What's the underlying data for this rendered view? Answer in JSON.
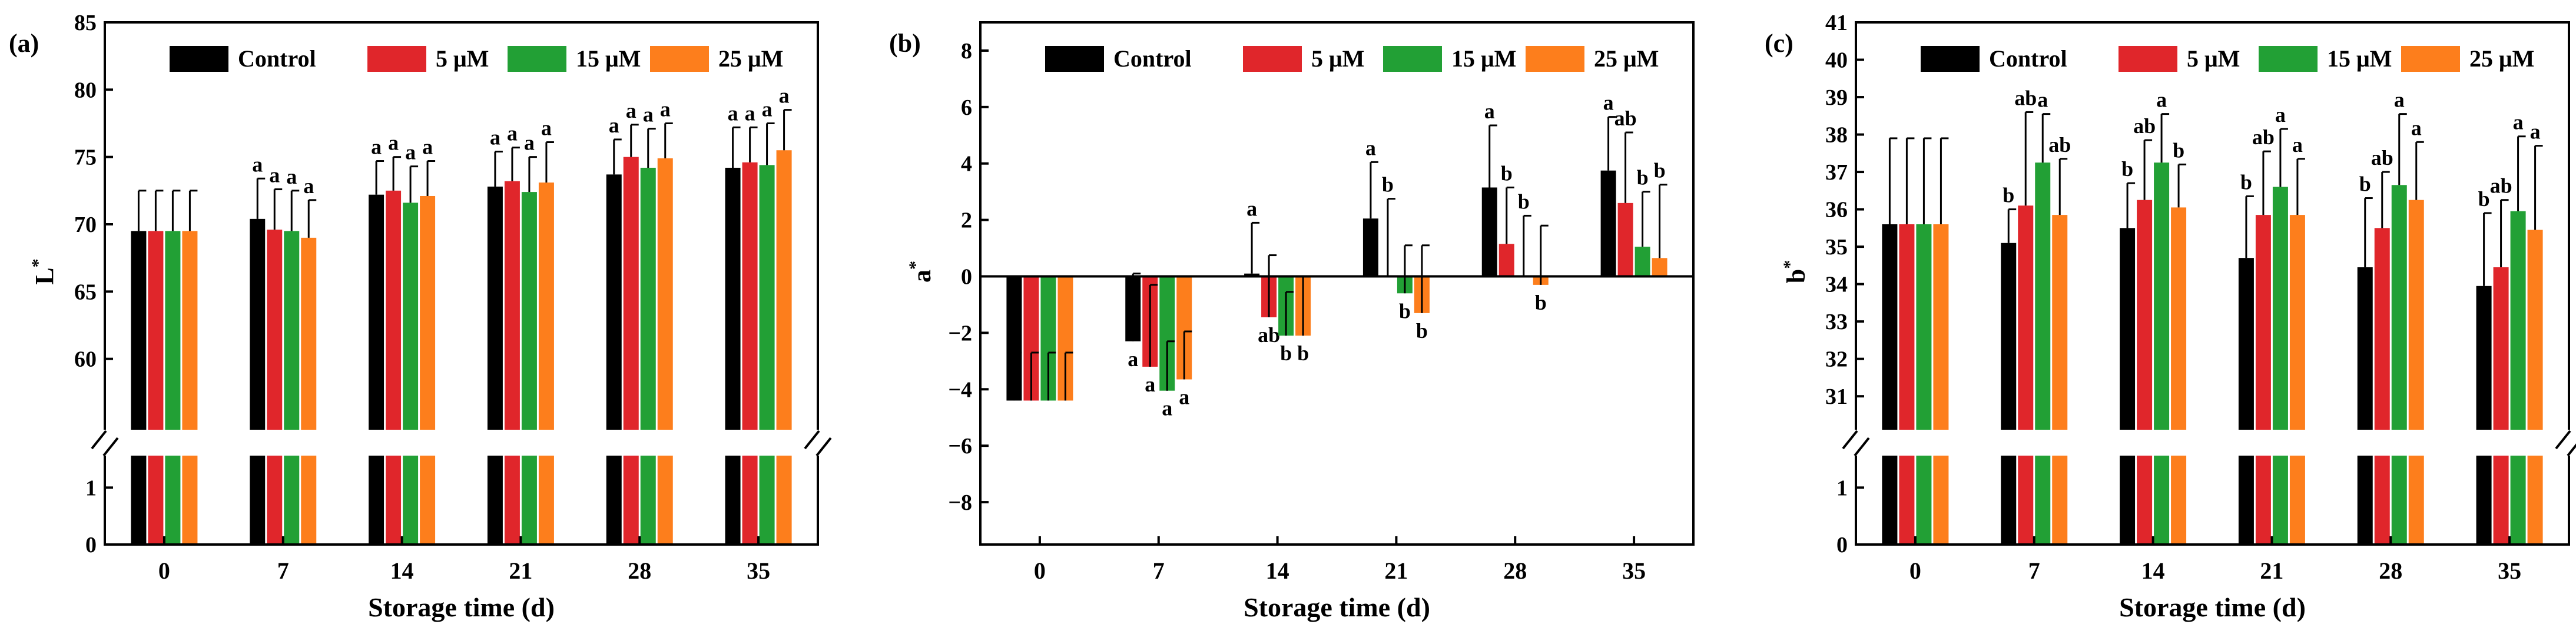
{
  "figure": {
    "colors": [
      "#000000",
      "#e0262b",
      "#22a035",
      "#fd7e1c"
    ],
    "legend_labels": [
      "Control",
      "5 μM",
      "15 μM",
      "25 μM"
    ]
  },
  "chart_data": [
    {
      "id": "a",
      "panel_label": "(a)",
      "type": "bar",
      "xlabel": "Storage time (d)",
      "ylabel": "L",
      "ylabel_sup": "*",
      "categories": [
        "0",
        "7",
        "14",
        "21",
        "28",
        "35"
      ],
      "axis_break": true,
      "yticks_low": [
        0,
        1
      ],
      "yticks_high": [
        60,
        65,
        70,
        75,
        80,
        85
      ],
      "ylim_low": [
        0,
        1.5
      ],
      "ylim_high": [
        55,
        85
      ],
      "series": [
        {
          "name": "Control",
          "values": [
            69.5,
            70.4,
            72.2,
            72.8,
            73.7,
            74.2
          ],
          "errors": [
            3.0,
            3.0,
            2.5,
            2.6,
            2.6,
            3.0
          ],
          "letters": [
            "",
            "a",
            "a",
            "a",
            "a",
            "a"
          ]
        },
        {
          "name": "5 μM",
          "values": [
            69.5,
            69.6,
            72.5,
            73.2,
            75.0,
            74.6
          ],
          "errors": [
            3.0,
            3.0,
            2.5,
            2.5,
            2.4,
            2.6
          ],
          "letters": [
            "",
            "a",
            "a",
            "a",
            "a",
            "a"
          ]
        },
        {
          "name": "15 μM",
          "values": [
            69.5,
            69.5,
            71.6,
            72.4,
            74.2,
            74.4
          ],
          "errors": [
            3.0,
            3.0,
            2.7,
            2.6,
            2.9,
            3.1
          ],
          "letters": [
            "",
            "a",
            "a",
            "a",
            "a",
            "a"
          ]
        },
        {
          "name": "25 μM",
          "values": [
            69.5,
            69.0,
            72.1,
            73.1,
            74.9,
            75.5
          ],
          "errors": [
            3.0,
            2.8,
            2.6,
            3.0,
            2.6,
            3.0
          ],
          "letters": [
            "",
            "a",
            "a",
            "a",
            "a",
            "a"
          ]
        }
      ]
    },
    {
      "id": "b",
      "panel_label": "(b)",
      "type": "bar",
      "xlabel": "Storage time (d)",
      "ylabel": "a",
      "ylabel_sup": "*",
      "categories": [
        "0",
        "7",
        "14",
        "21",
        "28",
        "35"
      ],
      "axis_break": false,
      "ylim": [
        -9.5,
        9
      ],
      "yticks": [
        -8,
        -6,
        -4,
        -2,
        0,
        2,
        4,
        6,
        8
      ],
      "series": [
        {
          "name": "Control",
          "values": [
            -4.4,
            -2.3,
            0.1,
            2.05,
            3.15,
            3.75
          ],
          "errors": [
            1.7,
            2.4,
            1.8,
            2.0,
            2.2,
            1.9
          ],
          "letters": [
            "",
            "a",
            "a",
            "a",
            "a",
            "a"
          ]
        },
        {
          "name": "5 μM",
          "values": [
            -4.4,
            -3.2,
            -1.45,
            0.0,
            1.15,
            2.6
          ],
          "errors": [
            1.7,
            2.9,
            2.2,
            2.75,
            2.0,
            2.5
          ],
          "letters": [
            "",
            "a",
            "ab",
            "b",
            "b",
            "ab"
          ]
        },
        {
          "name": "15 μM",
          "values": [
            -4.4,
            -4.05,
            -2.1,
            -0.6,
            0.0,
            1.05
          ],
          "errors": [
            1.7,
            1.75,
            1.55,
            1.7,
            2.15,
            1.95
          ],
          "letters": [
            "",
            "a",
            "b",
            "b",
            "b",
            "b"
          ]
        },
        {
          "name": "25 μM",
          "values": [
            -4.4,
            -3.65,
            -2.1,
            -1.3,
            -0.3,
            0.65
          ],
          "errors": [
            1.7,
            1.7,
            2.1,
            2.4,
            2.1,
            2.6
          ],
          "letters": [
            "",
            "a",
            "b",
            "b",
            "b",
            "b"
          ]
        }
      ]
    },
    {
      "id": "c",
      "panel_label": "(c)",
      "type": "bar",
      "xlabel": "Storage time (d)",
      "ylabel": "b",
      "ylabel_sup": "*",
      "categories": [
        "0",
        "7",
        "14",
        "21",
        "28",
        "35"
      ],
      "axis_break": true,
      "yticks_low": [
        0,
        1
      ],
      "yticks_high": [
        31,
        32,
        33,
        34,
        35,
        36,
        37,
        38,
        39,
        40,
        41
      ],
      "ylim_low": [
        0,
        1.5
      ],
      "ylim_high": [
        30.2,
        41
      ],
      "series": [
        {
          "name": "Control",
          "values": [
            35.6,
            35.1,
            35.5,
            34.7,
            34.45,
            33.95
          ],
          "errors": [
            2.3,
            0.9,
            1.2,
            1.65,
            1.85,
            1.95
          ],
          "letters": [
            "",
            "b",
            "b",
            "b",
            "b",
            "b"
          ]
        },
        {
          "name": "5 μM",
          "values": [
            35.6,
            36.1,
            36.25,
            35.85,
            35.5,
            34.45
          ],
          "errors": [
            2.3,
            2.5,
            1.6,
            1.7,
            1.5,
            1.8
          ],
          "letters": [
            "",
            "ab",
            "ab",
            "ab",
            "ab",
            "ab"
          ]
        },
        {
          "name": "15 μM",
          "values": [
            35.6,
            37.25,
            37.25,
            36.6,
            36.65,
            35.95
          ],
          "errors": [
            2.3,
            1.3,
            1.3,
            1.55,
            1.9,
            2.0
          ],
          "letters": [
            "",
            "a",
            "a",
            "a",
            "a",
            "a"
          ]
        },
        {
          "name": "25 μM",
          "values": [
            35.6,
            35.85,
            36.05,
            35.85,
            36.25,
            35.45
          ],
          "errors": [
            2.3,
            1.5,
            1.15,
            1.5,
            1.55,
            2.25
          ],
          "letters": [
            "",
            "ab",
            "b",
            "a",
            "a",
            "a"
          ]
        }
      ]
    }
  ]
}
